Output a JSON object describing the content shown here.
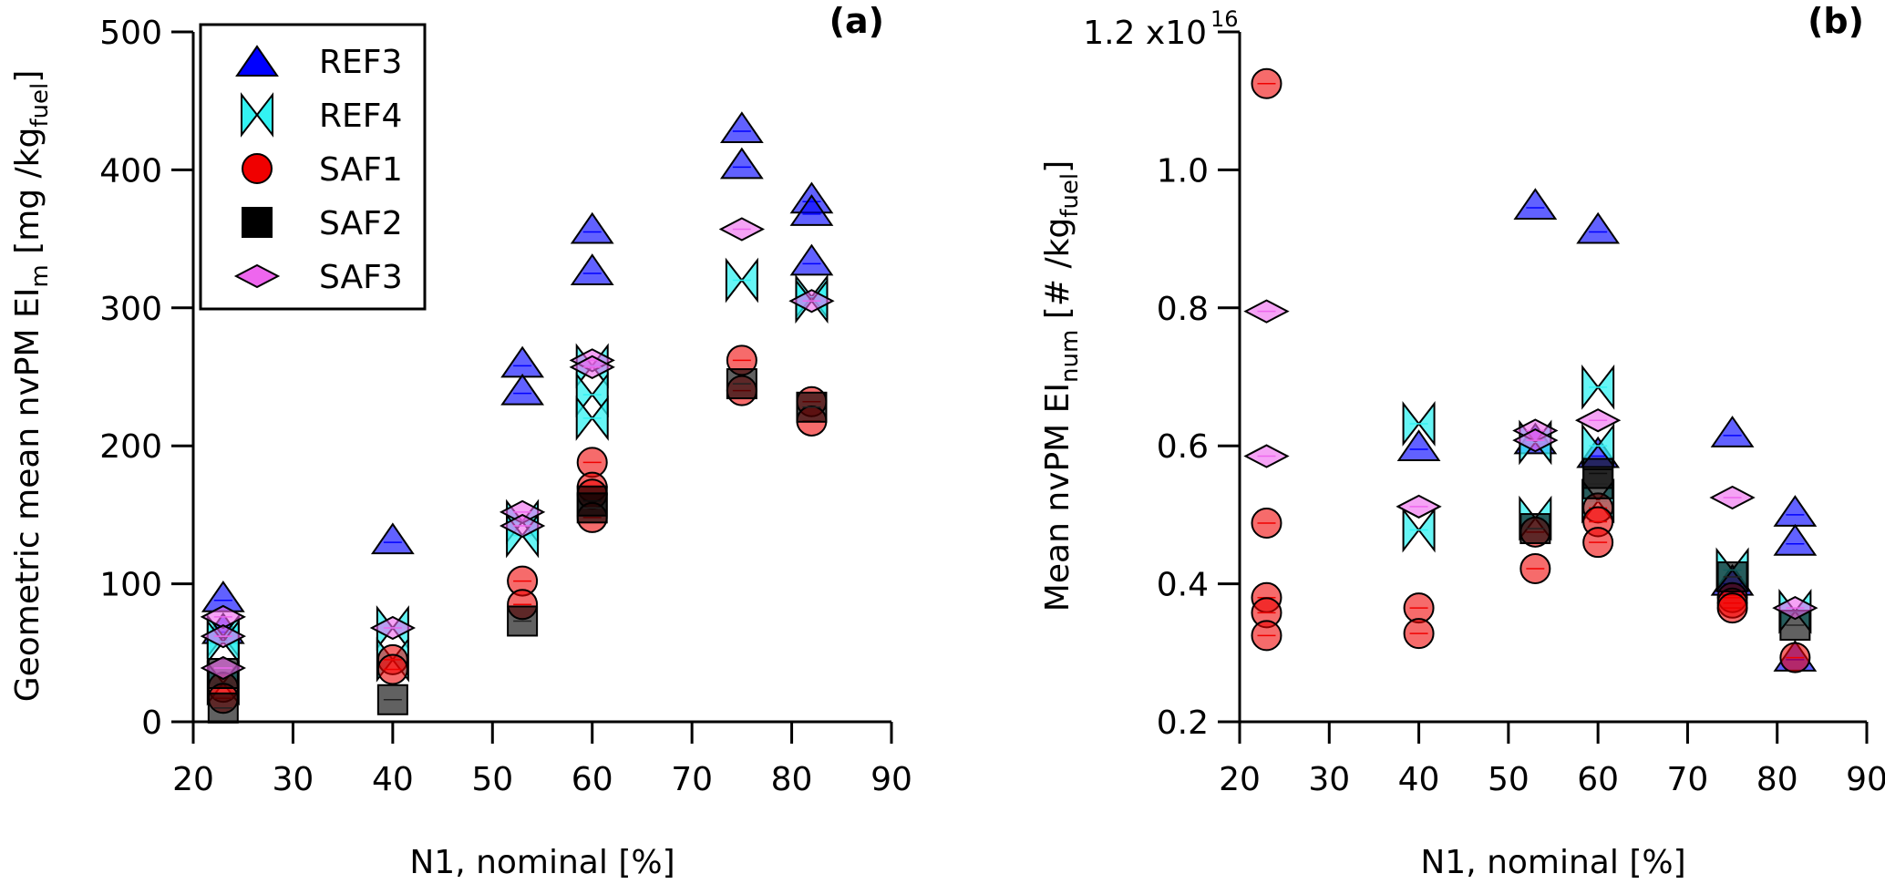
{
  "legend": [
    {
      "name": "REF3",
      "marker": "triangle",
      "color": "#0000ff"
    },
    {
      "name": "REF4",
      "marker": "bowtie",
      "color": "#33f2f2"
    },
    {
      "name": "SAF1",
      "marker": "circle",
      "color": "#f00000"
    },
    {
      "name": "SAF2",
      "marker": "square",
      "color": "#000000"
    },
    {
      "name": "SAF3",
      "marker": "diamond",
      "color": "#ee66ee"
    }
  ],
  "chart_data": [
    {
      "type": "scatter",
      "panel_label": "(a)",
      "xlabel": "N1, nominal [%]",
      "ylabel_main": "Geometric mean nvPM EI",
      "ylabel_sub": "m",
      "ylabel_unit_pre": " [mg /kg",
      "ylabel_unit_sub": "fuel",
      "ylabel_unit_post": "]",
      "xlim": [
        20,
        90
      ],
      "ylim": [
        0,
        500
      ],
      "xticks": [
        20,
        30,
        40,
        50,
        60,
        70,
        80,
        90
      ],
      "yticks": [
        0,
        100,
        200,
        300,
        400,
        500
      ],
      "ytick_labels": [
        "0",
        "100",
        "200",
        "300",
        "400",
        "500"
      ],
      "legend_position": "top-left",
      "series": [
        {
          "name": "REF3",
          "x": [
            23,
            23,
            40,
            53,
            53,
            60,
            60,
            75,
            75,
            82,
            82,
            82
          ],
          "y": [
            88,
            65,
            130,
            258,
            238,
            355,
            325,
            428,
            402,
            377,
            368,
            332
          ]
        },
        {
          "name": "REF4",
          "x": [
            23,
            23,
            23,
            40,
            40,
            53,
            53,
            60,
            60,
            60,
            75,
            82,
            82
          ],
          "y": [
            62,
            58,
            28,
            68,
            45,
            145,
            135,
            258,
            237,
            220,
            320,
            308,
            305
          ]
        },
        {
          "name": "SAF1",
          "x": [
            23,
            23,
            40,
            40,
            53,
            53,
            60,
            60,
            60,
            60,
            75,
            75,
            82,
            82
          ],
          "y": [
            25,
            17,
            45,
            38,
            102,
            85,
            188,
            170,
            165,
            148,
            262,
            240,
            232,
            218
          ]
        },
        {
          "name": "SAF2",
          "x": [
            23,
            23,
            40,
            53,
            60,
            60,
            75,
            82
          ],
          "y": [
            35,
            10,
            16,
            73,
            160,
            155,
            245,
            228
          ]
        },
        {
          "name": "SAF3",
          "x": [
            23,
            23,
            23,
            40,
            53,
            53,
            60,
            60,
            75,
            82
          ],
          "y": [
            76,
            62,
            39,
            68,
            152,
            142,
            262,
            257,
            357,
            305
          ]
        }
      ]
    },
    {
      "type": "scatter",
      "panel_label": "(b)",
      "xlabel": "N1, nominal [%]",
      "ylabel_main": "Mean nvPM EI",
      "ylabel_sub": "num",
      "ylabel_unit_pre": " [# /kg",
      "ylabel_unit_sub": "fuel",
      "ylabel_unit_post": "]",
      "xlim": [
        20,
        90
      ],
      "ylim": [
        0.2,
        1.2
      ],
      "scale_note": "x10^16",
      "xticks": [
        20,
        30,
        40,
        50,
        60,
        70,
        80,
        90
      ],
      "yticks": [
        0.2,
        0.4,
        0.6,
        0.8,
        1.0,
        1.2
      ],
      "ytick_labels": [
        "0.2",
        "0.4",
        "0.6",
        "0.8",
        "1.0",
        "1.2 x10"
      ],
      "ytick_top_exponent": "16",
      "legend_position": "none",
      "series": [
        {
          "name": "REF3",
          "x": [
            40,
            53,
            53,
            60,
            60,
            75,
            75,
            82,
            82,
            82
          ],
          "y": [
            0.595,
            0.945,
            0.605,
            0.91,
            0.585,
            0.615,
            0.4,
            0.5,
            0.458,
            0.29
          ]
        },
        {
          "name": "REF4",
          "x": [
            40,
            40,
            53,
            53,
            60,
            60,
            60,
            75,
            82
          ],
          "y": [
            0.632,
            0.478,
            0.605,
            0.495,
            0.685,
            0.6,
            0.52,
            0.42,
            0.36
          ]
        },
        {
          "name": "SAF1",
          "x": [
            23,
            23,
            23,
            23,
            23,
            40,
            40,
            53,
            53,
            60,
            60,
            60,
            75,
            75,
            75,
            82
          ],
          "y": [
            1.125,
            0.488,
            0.38,
            0.358,
            0.325,
            0.365,
            0.328,
            0.475,
            0.422,
            0.51,
            0.49,
            0.46,
            0.38,
            0.372,
            0.365,
            0.293
          ]
        },
        {
          "name": "SAF2",
          "x": [
            53,
            60,
            60,
            75,
            82
          ],
          "y": [
            0.48,
            0.56,
            0.545,
            0.41,
            0.34
          ]
        },
        {
          "name": "SAF3",
          "x": [
            23,
            23,
            40,
            53,
            53,
            60,
            75,
            82
          ],
          "y": [
            0.795,
            0.585,
            0.512,
            0.622,
            0.608,
            0.637,
            0.525,
            0.365
          ]
        }
      ]
    }
  ]
}
